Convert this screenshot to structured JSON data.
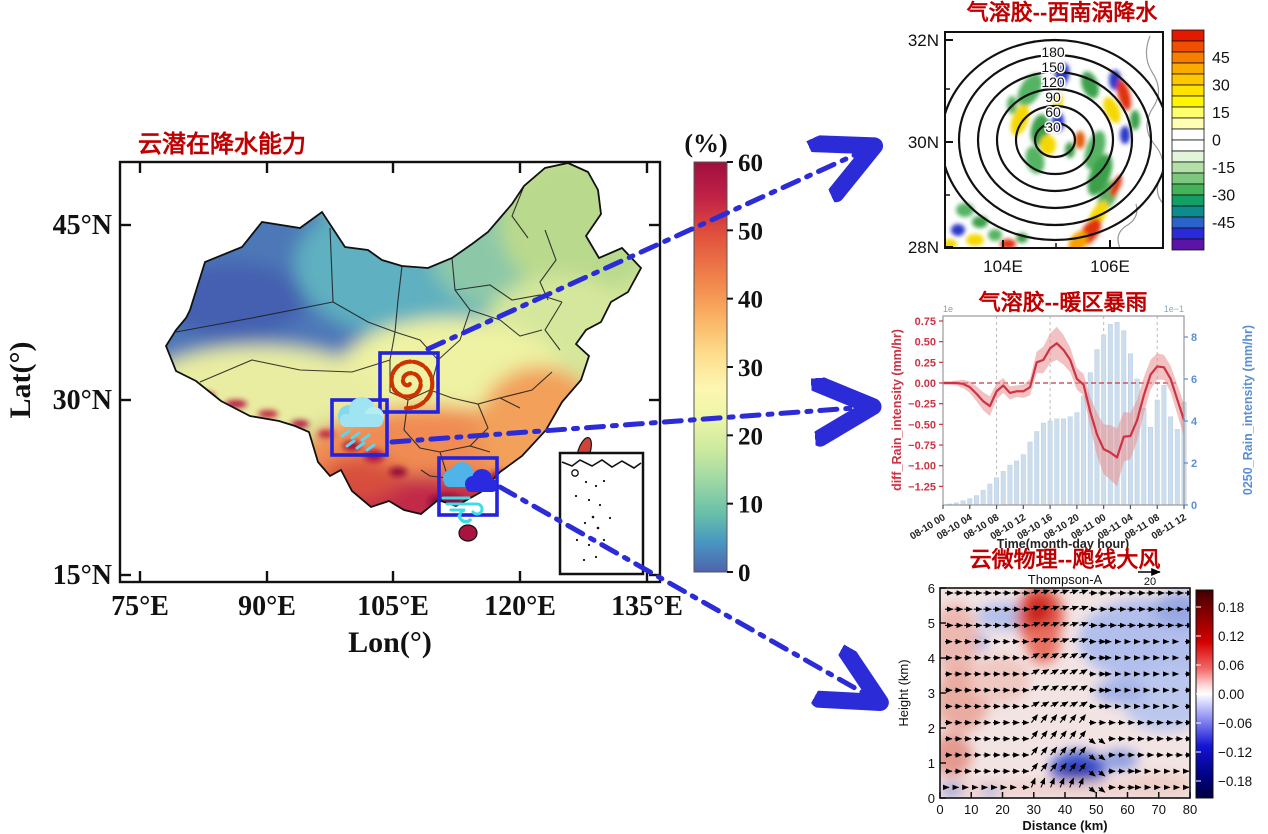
{
  "accent": {
    "arrow_blue": "#2b2bd8",
    "title_red": "#c00000",
    "box_blue": "#2323dd"
  },
  "map": {
    "title": "云潜在降水能力",
    "xlabel": "Lon(°)",
    "ylabel": "Lat(°)",
    "x_ticks": [
      "75°E",
      "90°E",
      "105°E",
      "120°E",
      "135°E"
    ],
    "y_ticks": [
      "45°N",
      "30°N",
      "15°N"
    ],
    "colorbar": {
      "title": "(%)",
      "ticks": [
        "60",
        "50",
        "40",
        "30",
        "20",
        "10",
        "0"
      ]
    },
    "boxes": [
      {
        "name": "southwest-vortex-box",
        "icon": "vortex-spiral-icon"
      },
      {
        "name": "warm-rain-box",
        "icon": "rain-cloud-icon"
      },
      {
        "name": "squall-wind-box",
        "icon": "wind-clouds-icon"
      }
    ]
  },
  "panel_vortex": {
    "title": "气溶胶--西南涡降水",
    "y_ticks": [
      "32N",
      "30N",
      "28N"
    ],
    "x_ticks": [
      "104E",
      "106E"
    ],
    "contour_labels": [
      "180",
      "150",
      "120",
      "90",
      "60",
      "30"
    ],
    "colorbar_ticks": [
      "45",
      "30",
      "15",
      "0",
      "-15",
      "-30",
      "-45"
    ],
    "colorbar_colors": [
      "#e31a00",
      "#f04e00",
      "#f87e00",
      "#fbaa00",
      "#fdc800",
      "#ffe200",
      "#fff600",
      "#ffff6e",
      "#ffffb4",
      "#ffffff",
      "#ffffff",
      "#e2f4da",
      "#b2e0a6",
      "#7cc87e",
      "#44b45a",
      "#12a064",
      "#0c8c8c",
      "#2a64c8",
      "#2a2ad8",
      "#5c14a8"
    ]
  },
  "panel_rain": {
    "title": "气溶胶--暖区暴雨",
    "ylabel_left": "diff_Rain_intensity (mm/hr)",
    "ylabel_right": "0250_Rain_intensity (mm/hr)",
    "xlabel": "Time(month-day hour)",
    "left_ticks": [
      "0.75",
      "0.50",
      "0.25",
      "0.00",
      "−0.25",
      "−0.50",
      "−0.75",
      "−1.00",
      "−1.25"
    ],
    "right_ticks": [
      "0",
      "2",
      "4",
      "6",
      "8"
    ],
    "right_offset": "1e−1",
    "left_offset": "1e",
    "x_ticks": [
      "08-10 00",
      "08-10 04",
      "08-10 08",
      "08-10 12",
      "08-10 16",
      "08-10 20",
      "08-11 00",
      "08-11 04",
      "08-11 08",
      "08-11 12"
    ]
  },
  "panel_squall": {
    "title": "云微物理--飑线大风",
    "subtitle": "Thompson-A",
    "quiver_key": "20",
    "ylabel": "Height (km)",
    "xlabel": "Distance (km)",
    "y_ticks": [
      "6",
      "5",
      "4",
      "3",
      "2",
      "1",
      "0"
    ],
    "x_ticks": [
      "0",
      "10",
      "20",
      "30",
      "40",
      "50",
      "60",
      "70",
      "80"
    ],
    "colorbar_ticks": [
      "0.18",
      "0.12",
      "0.06",
      "0.00",
      "−0.06",
      "−0.12",
      "−0.18"
    ]
  },
  "chart_data": [
    {
      "type": "heatmap",
      "title": "云潜在降水能力",
      "xlabel": "Lon(°)",
      "ylabel": "Lat(°)",
      "xlim": [
        72.5,
        137
      ],
      "ylim": [
        15,
        50.5
      ],
      "x_tick_values": [
        75,
        90,
        105,
        120,
        135
      ],
      "y_tick_values": [
        45,
        30,
        15
      ],
      "colorbar": {
        "label": "(%)",
        "range": [
          0,
          60
        ],
        "ticks": [
          0,
          10,
          20,
          30,
          40,
          50,
          60
        ],
        "colormap": "spectral_reversed"
      },
      "pattern": "low values (blue, ~0-15%) over northwest China; mid values (green-yellow, 20-35%) over north/central China; high values (orange-red, 40-60%) over southern China and along the Himalayan margin",
      "highlight_boxes": [
        {
          "label": "southwest vortex region",
          "lon": [
            103.3,
            110.2
          ],
          "lat": [
            29.0,
            34.0
          ]
        },
        {
          "label": "warm-sector rainstorm region",
          "lon": [
            97.7,
            104.2
          ],
          "lat": [
            25.3,
            30.0
          ]
        },
        {
          "label": "squall-line gale region",
          "lon": [
            110.3,
            117.2
          ],
          "lat": [
            20.2,
            25.0
          ]
        }
      ]
    },
    {
      "type": "heatmap",
      "title": "气溶胶--西南涡降水",
      "xlim_deg_e": [
        103,
        107.1
      ],
      "ylim_deg_n": [
        28,
        32
      ],
      "x_tick_values": [
        104,
        106
      ],
      "y_tick_values": [
        32,
        30,
        28
      ],
      "contours": {
        "levels": [
          30,
          60,
          90,
          120,
          150,
          180
        ],
        "shape": "concentric circles",
        "center": [
          105.1,
          30.0
        ]
      },
      "colorbar": {
        "range": [
          -52.5,
          52.5
        ],
        "ticks": [
          45,
          30,
          15,
          0,
          -15,
          -30,
          -45
        ],
        "colormap": "red-yellow-white-green-blue-purple"
      }
    },
    {
      "type": "line+bar",
      "title": "气溶胶--暖区暴雨",
      "x_start": "08-10 00",
      "x_step_hours": 1,
      "n_points": 37,
      "x_tick_labels": [
        "08-10 00",
        "08-10 04",
        "08-10 08",
        "08-10 12",
        "08-10 16",
        "08-10 20",
        "08-11 00",
        "08-11 04",
        "08-11 08",
        "08-11 12"
      ],
      "xlabel": "Time(month-day hour)",
      "left_axis": {
        "label": "diff_Rain_intensity (mm/hr)",
        "tick_values": [
          0.75,
          0.5,
          0.25,
          0,
          -0.25,
          -0.5,
          -0.75,
          -1.0,
          -1.25
        ],
        "color": "#cc3344"
      },
      "right_axis": {
        "label": "0250_Rain_intensity (mm/hr)",
        "tick_values": [
          0,
          2,
          4,
          6,
          8
        ],
        "scale": "1e-1",
        "color": "#5b8fd4"
      },
      "zero_line": 0.0,
      "series": [
        {
          "name": "diff_Rain_intensity",
          "type": "line",
          "color": "#cc3344",
          "values": [
            0.0,
            0.0,
            0.0,
            -0.01,
            -0.05,
            -0.13,
            -0.22,
            -0.28,
            -0.1,
            -0.03,
            -0.12,
            -0.1,
            -0.1,
            -0.05,
            0.25,
            0.28,
            0.42,
            0.48,
            0.4,
            0.28,
            0.05,
            -0.02,
            -0.35,
            -0.62,
            -0.8,
            -0.84,
            -0.9,
            -0.65,
            -0.64,
            -0.45,
            -0.15,
            0.1,
            0.2,
            0.19,
            0.05,
            -0.2,
            -0.45
          ],
          "band_halfwidth": [
            0.02,
            0.02,
            0.03,
            0.05,
            0.07,
            0.09,
            0.11,
            0.12,
            0.1,
            0.09,
            0.08,
            0.07,
            0.08,
            0.1,
            0.13,
            0.16,
            0.18,
            0.2,
            0.18,
            0.15,
            0.13,
            0.13,
            0.18,
            0.26,
            0.3,
            0.33,
            0.35,
            0.3,
            0.28,
            0.25,
            0.22,
            0.18,
            0.16,
            0.15,
            0.16,
            0.18,
            0.2
          ]
        },
        {
          "name": "0250_Rain_intensity",
          "type": "bar",
          "color": "#ccdded",
          "values": [
            0,
            0.05,
            0.1,
            0.2,
            0.3,
            0.45,
            0.7,
            1.0,
            1.3,
            1.6,
            1.9,
            2.1,
            2.4,
            3.0,
            3.5,
            3.9,
            4.0,
            4.1,
            4.1,
            4.2,
            4.4,
            5.2,
            6.3,
            7.4,
            8.1,
            8.6,
            8.7,
            8.3,
            7.2,
            6.0,
            4.6,
            3.7,
            5.0,
            5.7,
            4.2,
            3.6,
            4.9
          ]
        }
      ]
    },
    {
      "type": "heatmap+vectors",
      "title": "云微物理--飑线大风",
      "subtitle": "Thompson-A",
      "xlabel": "Distance (km)",
      "ylabel": "Height (km)",
      "xlim": [
        0,
        80
      ],
      "ylim": [
        0,
        6
      ],
      "x_tick_values": [
        0,
        10,
        20,
        30,
        40,
        50,
        60,
        70,
        80
      ],
      "y_tick_values": [
        0,
        1,
        2,
        3,
        4,
        5,
        6
      ],
      "vector_key": 20,
      "colorbar": {
        "range": [
          -0.21,
          0.21
        ],
        "ticks": [
          0.18,
          0.12,
          0.06,
          0.0,
          -0.06,
          -0.12,
          -0.18
        ],
        "colormap": "seismic"
      },
      "pattern": "warm (red) anomaly column near x=30-45 km aloft, cool (blue) anomalies right side and a strong negative pocket near x=40-50 km below 1.5 km; horizontal wind vectors with strong upward tilt near x=30-48 km"
    }
  ]
}
